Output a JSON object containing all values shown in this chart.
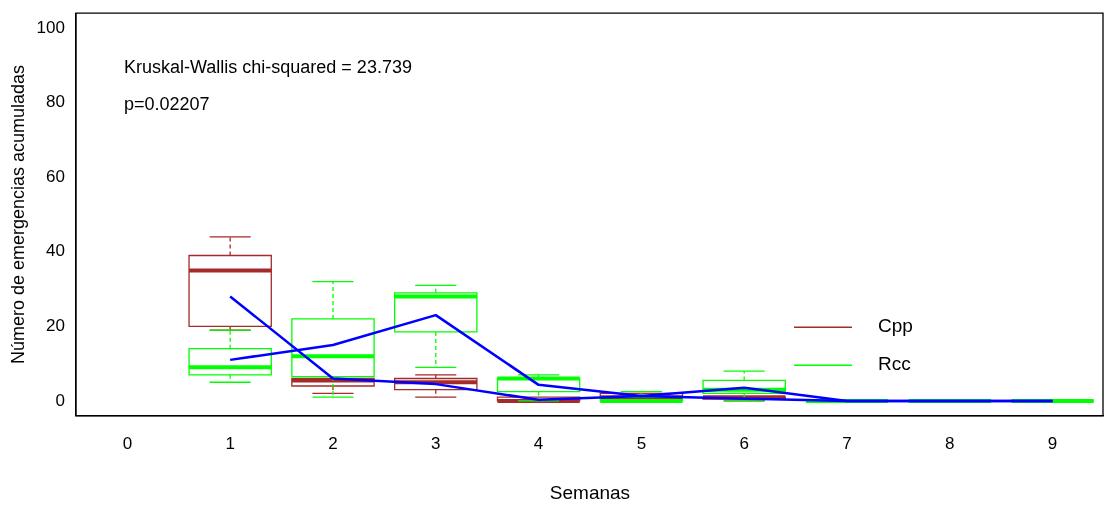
{
  "chart_data": {
    "type": "box",
    "xlabel": "Semanas",
    "ylabel": "Número de emergencias acumuladas",
    "categories": [
      "0",
      "1",
      "2",
      "3",
      "4",
      "5",
      "6",
      "7",
      "8",
      "9"
    ],
    "ylim": [
      -4,
      104
    ],
    "yticks": [
      0,
      20,
      40,
      60,
      80,
      100
    ],
    "grid": false,
    "legend": "right",
    "annotations": [
      "Kruskal-Wallis chi-squared = 23.739",
      "p=0.02207"
    ],
    "series": [
      {
        "name": "Cpp",
        "color": "#a52a2a",
        "boxes": [
          null,
          {
            "low": 19,
            "q1": 20,
            "median": 35,
            "q3": 39,
            "high": 44
          },
          {
            "low": 2,
            "q1": 4,
            "median": 5.5,
            "q3": 6,
            "high": 6
          },
          {
            "low": 1,
            "q1": 3,
            "median": 5,
            "q3": 6,
            "high": 7
          },
          {
            "low": 0,
            "q1": 0,
            "median": 0,
            "q3": 1,
            "high": 1
          },
          {
            "low": 0,
            "q1": 1,
            "median": 1,
            "q3": 2,
            "high": 2
          },
          {
            "low": 0,
            "q1": 0.5,
            "median": 1,
            "q3": 1,
            "high": 1
          },
          null,
          null,
          null
        ]
      },
      {
        "name": "Rcc",
        "color": "#00ff00",
        "boxes": [
          null,
          {
            "low": 5,
            "q1": 7,
            "median": 9,
            "q3": 14,
            "high": 19
          },
          {
            "low": 1,
            "q1": 6.5,
            "median": 12,
            "q3": 22,
            "high": 32
          },
          {
            "low": 9,
            "q1": 18.5,
            "median": 28,
            "q3": 29,
            "high": 31
          },
          {
            "low": 0,
            "q1": 2.5,
            "median": 6,
            "q3": 6,
            "high": 7
          },
          {
            "low": 0,
            "q1": 0,
            "median": 0,
            "q3": 1,
            "high": 2.5
          },
          {
            "low": 0,
            "q1": 2,
            "median": 3,
            "q3": 5.5,
            "high": 8
          },
          {
            "low": 0,
            "q1": 0,
            "median": 0,
            "q3": 0,
            "high": 0
          },
          {
            "low": 0,
            "q1": 0,
            "median": 0,
            "q3": 0,
            "high": 0
          },
          {
            "low": 0,
            "q1": 0,
            "median": 0,
            "q3": 0,
            "high": 0
          }
        ]
      },
      {
        "type": "line",
        "color": "#0000ff",
        "values": [
          null,
          28,
          6,
          4.5,
          0.3,
          1.3,
          0.6,
          0,
          0,
          0
        ]
      },
      {
        "type": "line",
        "color": "#0000ff",
        "values": [
          null,
          11,
          15,
          23,
          4.3,
          1.3,
          3.5,
          0,
          0,
          0
        ]
      }
    ]
  }
}
